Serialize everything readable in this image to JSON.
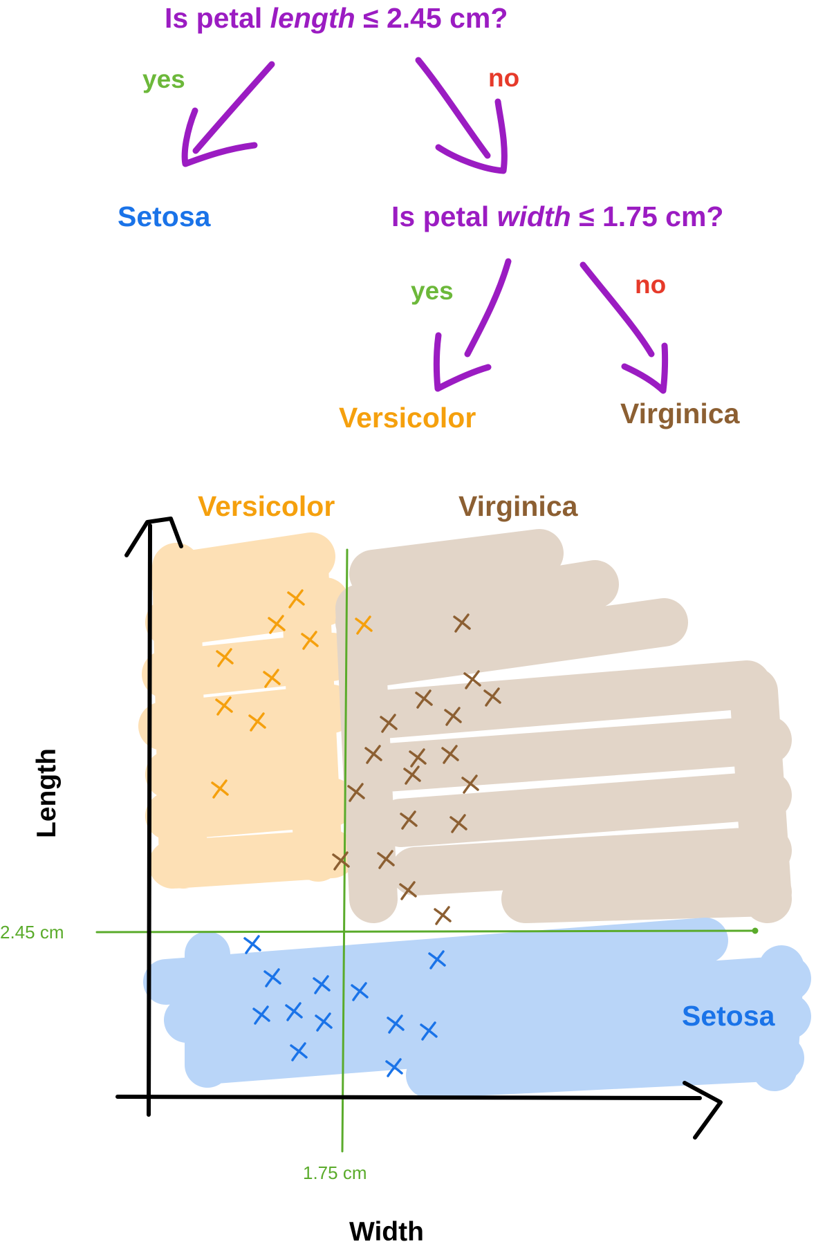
{
  "tree": {
    "root_question": {
      "prefix": "Is petal ",
      "feature": "length",
      "suffix": " ≤ 2.45 cm?"
    },
    "root_yes": "yes",
    "root_no": "no",
    "left_leaf": "Setosa",
    "second_question": {
      "prefix": "Is petal ",
      "feature": "width",
      "suffix": " ≤ 1.75 cm?"
    },
    "second_yes": "yes",
    "second_no": "no",
    "leaf_versicolor": "Versicolor",
    "leaf_virginica": "Virginica"
  },
  "plot": {
    "region_versicolor": "Versicolor",
    "region_virginica": "Virginica",
    "region_setosa": "Setosa",
    "threshold_length": "2.45 cm",
    "threshold_width": "1.75 cm",
    "xlabel": "Width",
    "ylabel": "Length"
  },
  "colors": {
    "question": "#9b1cc2",
    "yes": "#6cb83a",
    "no": "#e63a2a",
    "setosa": "#1a73e8",
    "setosa_fill": "#b9d5f8",
    "versicolor": "#f5a00d",
    "versicolor_fill": "#fde0b5",
    "virginica": "#8c5f32",
    "virginica_fill": "#e2d5c8",
    "split_line": "#5aab2b"
  },
  "chart_data": {
    "type": "scatter",
    "xlabel": "Width",
    "ylabel": "Length",
    "split_lines": [
      {
        "axis": "x",
        "value": "1.75 cm"
      },
      {
        "axis": "y",
        "value": "2.45 cm"
      }
    ],
    "series": [
      {
        "name": "Versicolor",
        "region": "width ≤ 1.75 cm, length > 2.45 cm"
      },
      {
        "name": "Virginica",
        "region": "width > 1.75 cm, length > 2.45 cm"
      },
      {
        "name": "Setosa",
        "region": "length ≤ 2.45 cm"
      }
    ]
  }
}
